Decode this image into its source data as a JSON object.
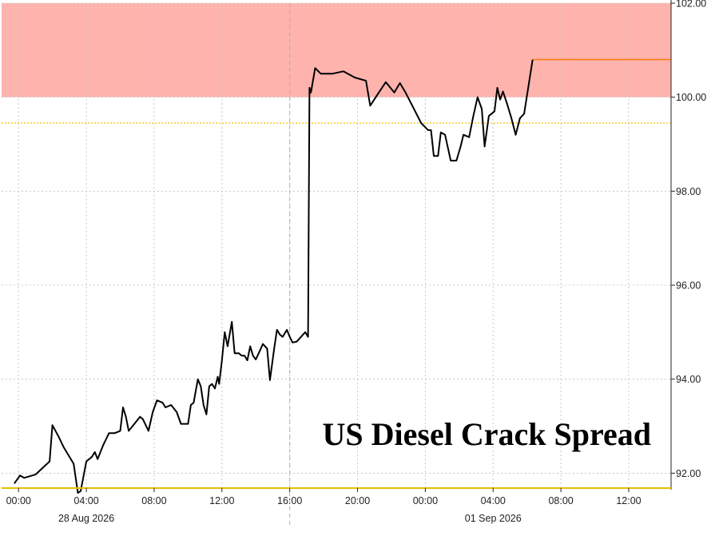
{
  "chart_data": {
    "type": "line",
    "title": "US Diesel Crack Spread",
    "ylim": [
      91.7,
      102.0
    ],
    "y_ticks": [
      "92.00",
      "94.00",
      "96.00",
      "98.00",
      "100.00",
      "102.00"
    ],
    "y_tick_values": [
      92,
      94,
      96,
      98,
      100,
      102
    ],
    "x_range": [
      "2026-08-27 23:00",
      "2026-09-01 14:30"
    ],
    "x_ticks": [
      {
        "label": "00:00",
        "at": "2026-08-28 00:00"
      },
      {
        "label": "04:00",
        "at": "2026-08-28 04:00"
      },
      {
        "label": "08:00",
        "at": "2026-08-28 08:00"
      },
      {
        "label": "12:00",
        "at": "2026-08-28 12:00"
      },
      {
        "label": "16:00",
        "at": "2026-08-28 16:00"
      },
      {
        "label": "20:00",
        "at": "2026-08-28 20:00"
      },
      {
        "label": "00:00",
        "at": "2026-09-01 00:00"
      },
      {
        "label": "04:00",
        "at": "2026-09-01 04:00"
      },
      {
        "label": "08:00",
        "at": "2026-09-01 08:00"
      },
      {
        "label": "12:00",
        "at": "2026-09-01 12:00"
      }
    ],
    "date_labels": [
      {
        "label": "28 Aug 2026",
        "at": "2026-08-28 04:00"
      },
      {
        "label": "01 Sep 2026",
        "at": "2026-09-01 04:00"
      }
    ],
    "session_break": "2026-08-28 16:00",
    "shaded_band": {
      "from": 100.0,
      "to": 102.0,
      "color": "#ffb3ad"
    },
    "reference_line": {
      "value": 99.45,
      "color": "#f2c200",
      "style": "dotted"
    },
    "last_value_line": {
      "value": 100.8,
      "from": "2026-09-01 06:20",
      "color": "#ff7f0e"
    },
    "series": [
      {
        "color": "#000000",
        "points": [
          [
            "2026-08-27 23:45",
            91.78
          ],
          [
            "2026-08-28 00:05",
            91.95
          ],
          [
            "2026-08-28 00:20",
            91.9
          ],
          [
            "2026-08-28 01:00",
            91.97
          ],
          [
            "2026-08-28 01:50",
            92.25
          ],
          [
            "2026-08-28 02:00",
            93.02
          ],
          [
            "2026-08-28 02:20",
            92.8
          ],
          [
            "2026-08-28 02:40",
            92.55
          ],
          [
            "2026-08-28 03:15",
            92.2
          ],
          [
            "2026-08-28 03:30",
            91.58
          ],
          [
            "2026-08-28 03:40",
            91.62
          ],
          [
            "2026-08-28 04:00",
            92.25
          ],
          [
            "2026-08-28 04:20",
            92.35
          ],
          [
            "2026-08-28 04:30",
            92.45
          ],
          [
            "2026-08-28 04:40",
            92.3
          ],
          [
            "2026-08-28 05:00",
            92.6
          ],
          [
            "2026-08-28 05:20",
            92.85
          ],
          [
            "2026-08-28 05:40",
            92.85
          ],
          [
            "2026-08-28 06:00",
            92.9
          ],
          [
            "2026-08-28 06:10",
            93.4
          ],
          [
            "2026-08-28 06:20",
            93.2
          ],
          [
            "2026-08-28 06:30",
            92.9
          ],
          [
            "2026-08-28 06:50",
            93.05
          ],
          [
            "2026-08-28 07:10",
            93.2
          ],
          [
            "2026-08-28 07:20",
            93.15
          ],
          [
            "2026-08-28 07:40",
            92.9
          ],
          [
            "2026-08-28 07:55",
            93.3
          ],
          [
            "2026-08-28 08:10",
            93.55
          ],
          [
            "2026-08-28 08:30",
            93.5
          ],
          [
            "2026-08-28 08:40",
            93.4
          ],
          [
            "2026-08-28 09:00",
            93.45
          ],
          [
            "2026-08-28 09:20",
            93.3
          ],
          [
            "2026-08-28 09:35",
            93.05
          ],
          [
            "2026-08-28 10:00",
            93.05
          ],
          [
            "2026-08-28 10:10",
            93.45
          ],
          [
            "2026-08-28 10:20",
            93.5
          ],
          [
            "2026-08-28 10:35",
            94.0
          ],
          [
            "2026-08-28 10:45",
            93.85
          ],
          [
            "2026-08-28 10:55",
            93.45
          ],
          [
            "2026-08-28 11:05",
            93.25
          ],
          [
            "2026-08-28 11:15",
            93.85
          ],
          [
            "2026-08-28 11:25",
            93.9
          ],
          [
            "2026-08-28 11:35",
            93.8
          ],
          [
            "2026-08-28 11:45",
            94.05
          ],
          [
            "2026-08-28 11:50",
            93.9
          ],
          [
            "2026-08-28 12:00",
            94.4
          ],
          [
            "2026-08-28 12:10",
            95.0
          ],
          [
            "2026-08-28 12:20",
            94.7
          ],
          [
            "2026-08-28 12:35",
            95.22
          ],
          [
            "2026-08-28 12:45",
            94.55
          ],
          [
            "2026-08-28 13:00",
            94.55
          ],
          [
            "2026-08-28 13:10",
            94.5
          ],
          [
            "2026-08-28 13:20",
            94.5
          ],
          [
            "2026-08-28 13:30",
            94.4
          ],
          [
            "2026-08-28 13:40",
            94.7
          ],
          [
            "2026-08-28 13:50",
            94.5
          ],
          [
            "2026-08-28 14:00",
            94.42
          ],
          [
            "2026-08-28 14:10",
            94.55
          ],
          [
            "2026-08-28 14:25",
            94.75
          ],
          [
            "2026-08-28 14:40",
            94.65
          ],
          [
            "2026-08-28 14:50",
            93.98
          ],
          [
            "2026-08-28 15:05",
            94.65
          ],
          [
            "2026-08-28 15:15",
            95.05
          ],
          [
            "2026-08-28 15:25",
            94.95
          ],
          [
            "2026-08-28 15:35",
            94.9
          ],
          [
            "2026-08-28 15:50",
            95.05
          ],
          [
            "2026-08-28 16:00",
            94.9
          ],
          [
            "2026-08-28 16:10",
            94.78
          ],
          [
            "2026-08-28 16:25",
            94.8
          ],
          [
            "2026-08-28 16:40",
            94.9
          ],
          [
            "2026-08-28 16:55",
            95.0
          ],
          [
            "2026-08-28 17:05",
            94.9
          ],
          [
            "2026-08-28 17:10",
            100.2
          ],
          [
            "2026-08-28 17:15",
            100.1
          ],
          [
            "2026-08-28 17:30",
            100.62
          ],
          [
            "2026-08-28 17:50",
            100.5
          ],
          [
            "2026-08-28 18:30",
            100.5
          ],
          [
            "2026-08-28 19:10",
            100.55
          ],
          [
            "2026-08-28 19:50",
            100.42
          ],
          [
            "2026-08-28 20:30",
            100.35
          ],
          [
            "2026-08-28 20:45",
            99.82
          ],
          [
            "2026-08-28 21:10",
            100.05
          ],
          [
            "2026-08-28 21:40",
            100.32
          ],
          [
            "2026-08-28 22:10",
            100.1
          ],
          [
            "2026-08-28 22:30",
            100.3
          ],
          [
            "2026-08-28 22:50",
            100.1
          ],
          [
            "2026-08-28 23:20",
            99.75
          ],
          [
            "2026-08-28 23:45",
            99.45
          ],
          [
            "2026-09-01 00:10",
            99.3
          ],
          [
            "2026-09-01 00:20",
            99.3
          ],
          [
            "2026-09-01 00:30",
            98.75
          ],
          [
            "2026-09-01 00:45",
            98.75
          ],
          [
            "2026-09-01 00:55",
            99.25
          ],
          [
            "2026-09-01 01:10",
            99.2
          ],
          [
            "2026-09-01 01:30",
            98.65
          ],
          [
            "2026-09-01 01:50",
            98.65
          ],
          [
            "2026-09-01 02:05",
            98.95
          ],
          [
            "2026-09-01 02:15",
            99.2
          ],
          [
            "2026-09-01 02:35",
            99.15
          ],
          [
            "2026-09-01 02:50",
            99.6
          ],
          [
            "2026-09-01 03:05",
            100.0
          ],
          [
            "2026-09-01 03:20",
            99.75
          ],
          [
            "2026-09-01 03:30",
            98.95
          ],
          [
            "2026-09-01 03:45",
            99.6
          ],
          [
            "2026-09-01 04:05",
            99.7
          ],
          [
            "2026-09-01 04:15",
            100.2
          ],
          [
            "2026-09-01 04:25",
            99.95
          ],
          [
            "2026-09-01 04:35",
            100.12
          ],
          [
            "2026-09-01 04:50",
            99.85
          ],
          [
            "2026-09-01 05:05",
            99.55
          ],
          [
            "2026-09-01 05:20",
            99.2
          ],
          [
            "2026-09-01 05:35",
            99.55
          ],
          [
            "2026-09-01 05:50",
            99.65
          ],
          [
            "2026-09-01 06:20",
            100.8
          ]
        ]
      }
    ],
    "grid": true
  }
}
